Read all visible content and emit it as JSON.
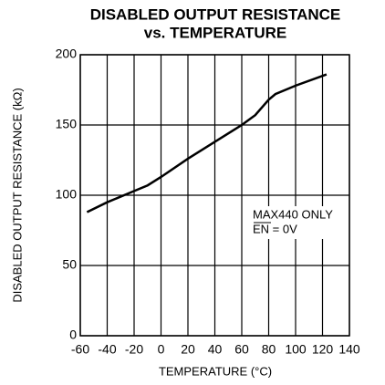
{
  "chart_data": {
    "type": "line",
    "title": [
      "DISABLED OUTPUT RESISTANCE",
      "vs. TEMPERATURE"
    ],
    "x_label": "TEMPERATURE (°C)",
    "y_label": "DISABLED OUTPUT RESISTANCE (kΩ)",
    "annotations": [
      "MAX440 ONLY",
      "EN = 0V"
    ],
    "x": [
      -55,
      -40,
      -20,
      -10,
      0,
      20,
      40,
      60,
      70,
      80,
      85,
      100,
      123
    ],
    "series": [
      {
        "name": "MAX440",
        "color": "#000000",
        "values": [
          88,
          95,
          103,
          107,
          113,
          126,
          138,
          150,
          157,
          168,
          172,
          178,
          186
        ]
      }
    ],
    "xlim": [
      -60,
      140
    ],
    "xticks": [
      -60,
      -40,
      -20,
      0,
      20,
      40,
      60,
      80,
      100,
      120,
      140
    ],
    "ylim": [
      0,
      200
    ],
    "yticks": [
      0,
      50,
      100,
      150,
      200
    ],
    "grid": true
  }
}
